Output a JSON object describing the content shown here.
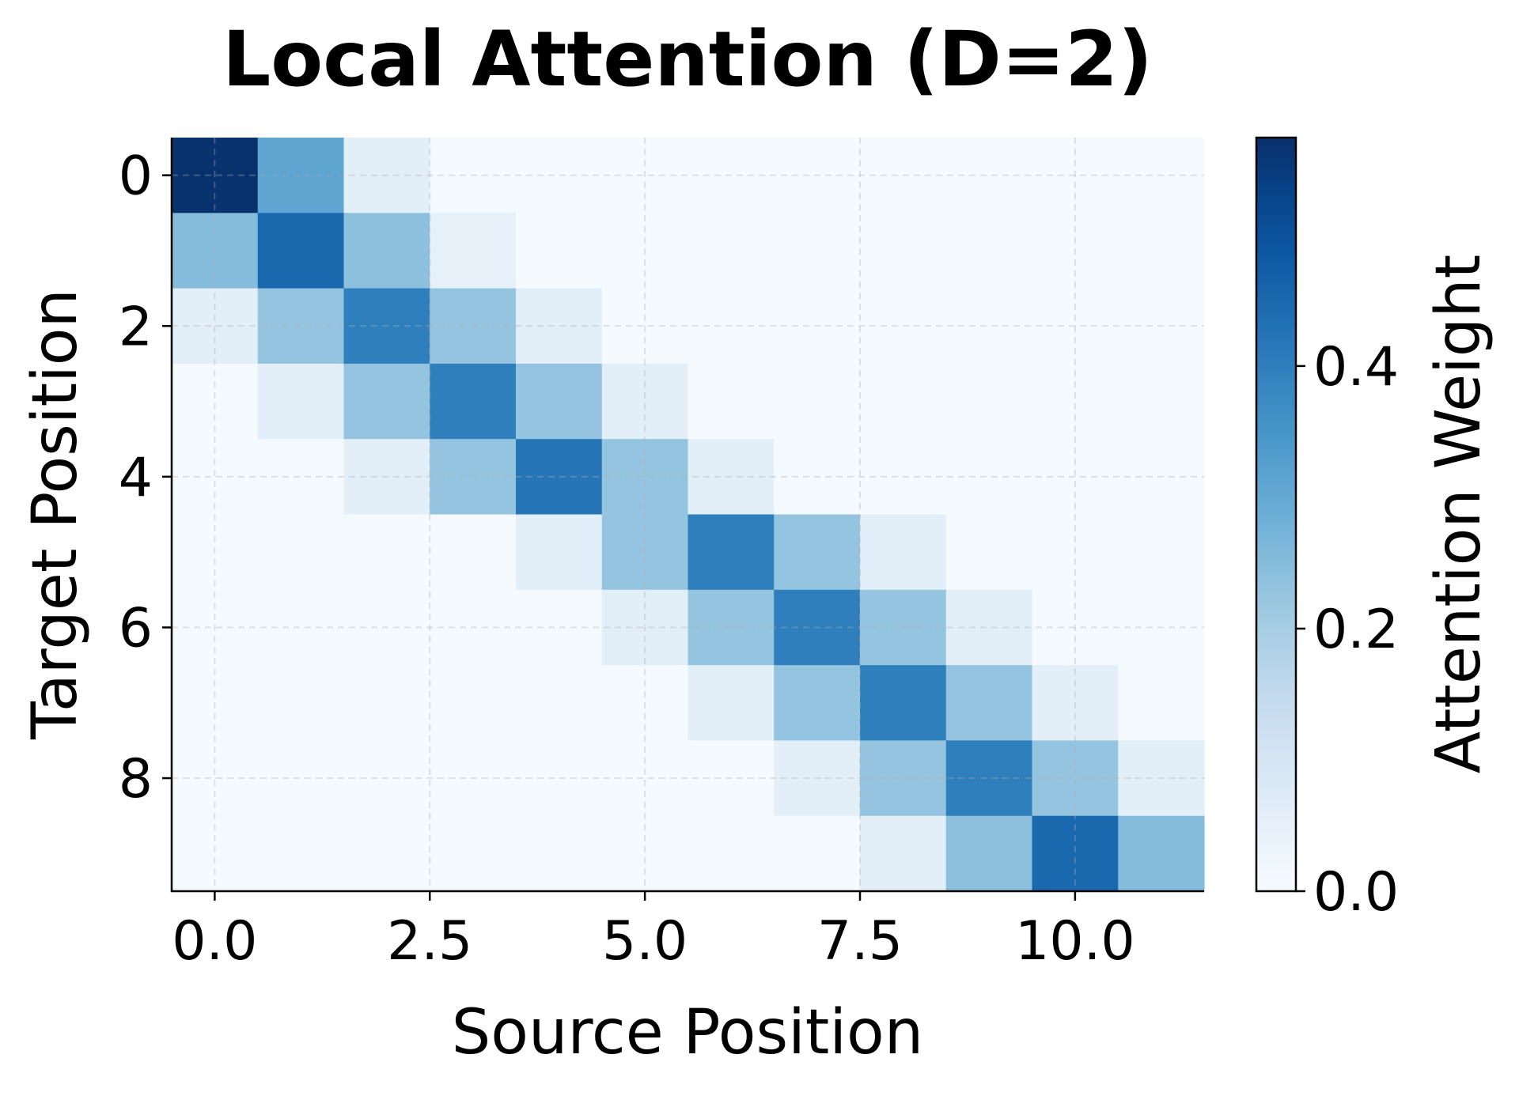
{
  "chart_data": {
    "type": "heatmap",
    "title": "Local Attention (D=2)",
    "xlabel": "Source Position",
    "ylabel": "Target Position",
    "colorbar_label": "Attention Weight",
    "colormap": "Blues",
    "vmin": 0.0,
    "vmax": 0.574,
    "xlim": [
      -0.5,
      11.5
    ],
    "ylim": [
      9.5,
      -0.5
    ],
    "xticks": [
      0,
      2.5,
      5,
      7.5,
      10
    ],
    "xtick_labels": [
      "0.0",
      "2.5",
      "5.0",
      "7.5",
      "10.0"
    ],
    "yticks": [
      0,
      2,
      4,
      6,
      8
    ],
    "ytick_labels": [
      "0",
      "2",
      "4",
      "6",
      "8"
    ],
    "colorbar_ticks": [
      0.0,
      0.2,
      0.4
    ],
    "colorbar_tick_labels": [
      "0.0",
      "0.2",
      "0.4"
    ],
    "grid": true,
    "rows": 10,
    "cols": 12,
    "values": [
      [
        0.57,
        0.31,
        0.06,
        0.005,
        0.005,
        0.005,
        0.005,
        0.005,
        0.005,
        0.005,
        0.005,
        0.005
      ],
      [
        0.25,
        0.45,
        0.24,
        0.05,
        0.005,
        0.005,
        0.005,
        0.005,
        0.005,
        0.005,
        0.005,
        0.005
      ],
      [
        0.06,
        0.23,
        0.4,
        0.23,
        0.06,
        0.005,
        0.005,
        0.005,
        0.005,
        0.005,
        0.005,
        0.005
      ],
      [
        0.005,
        0.06,
        0.23,
        0.4,
        0.23,
        0.06,
        0.005,
        0.005,
        0.005,
        0.005,
        0.005,
        0.005
      ],
      [
        0.005,
        0.005,
        0.06,
        0.23,
        0.42,
        0.23,
        0.06,
        0.005,
        0.005,
        0.005,
        0.005,
        0.005
      ],
      [
        0.005,
        0.005,
        0.005,
        0.005,
        0.06,
        0.23,
        0.4,
        0.23,
        0.06,
        0.005,
        0.005,
        0.005
      ],
      [
        0.005,
        0.005,
        0.005,
        0.005,
        0.005,
        0.06,
        0.23,
        0.4,
        0.23,
        0.06,
        0.005,
        0.005
      ],
      [
        0.005,
        0.005,
        0.005,
        0.005,
        0.005,
        0.005,
        0.06,
        0.23,
        0.4,
        0.23,
        0.06,
        0.005
      ],
      [
        0.005,
        0.005,
        0.005,
        0.005,
        0.005,
        0.005,
        0.005,
        0.06,
        0.23,
        0.4,
        0.23,
        0.06
      ],
      [
        0.005,
        0.005,
        0.005,
        0.005,
        0.005,
        0.005,
        0.005,
        0.005,
        0.06,
        0.24,
        0.45,
        0.25
      ]
    ]
  }
}
